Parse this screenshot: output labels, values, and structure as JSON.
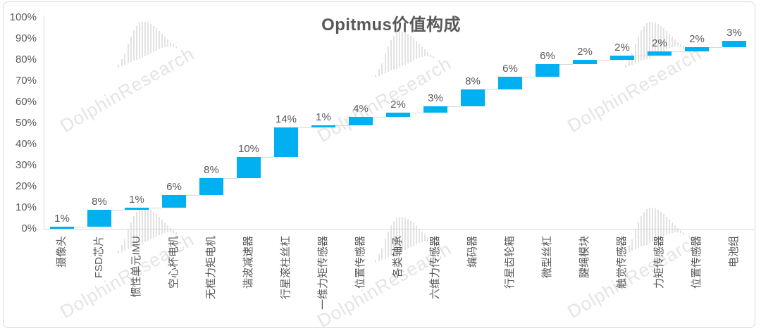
{
  "frame": {
    "background": "#ffffff",
    "border_color": "#d9d9d9"
  },
  "watermark": {
    "text": "DolphinResearch",
    "text_color": "#e4e4e4",
    "logo_color": "#e2e2e2",
    "logo": "dolphin-bars-icon"
  },
  "chart_data": {
    "type": "bar",
    "subtype": "waterfall",
    "title": "Opitmus价值构成",
    "categories": [
      "摄像头",
      "FSD芯片",
      "惯性单元IMU",
      "空心杯电机",
      "无框力矩电机",
      "谐波减速器",
      "行星滚柱丝杠",
      "一维力矩传感器",
      "位置传感器",
      "各类轴承",
      "六维力传感器",
      "编码器",
      "行星齿轮箱",
      "微型丝杠",
      "腱绳模块",
      "触觉传感器",
      "力矩传感器",
      "位置传感器",
      "电池组"
    ],
    "values": [
      1,
      8,
      1,
      6,
      8,
      10,
      14,
      1,
      4,
      2,
      3,
      8,
      6,
      6,
      2,
      2,
      2,
      2,
      3
    ],
    "data_labels": [
      "1%",
      "8%",
      "1%",
      "6%",
      "8%",
      "10%",
      "14%",
      "1%",
      "4%",
      "2%",
      "3%",
      "8%",
      "6%",
      "6%",
      "2%",
      "2%",
      "2%",
      "2%",
      "3%"
    ],
    "xlabel": "",
    "ylabel": "",
    "y_axis": {
      "ticks": [
        "100%",
        "90%",
        "80%",
        "70%",
        "60%",
        "50%",
        "40%",
        "30%",
        "20%",
        "10%",
        "0%"
      ],
      "min": 0,
      "max": 100
    },
    "grid": false,
    "legend": false,
    "colors": {
      "bar": "#00B0F0",
      "label_text": "#595959",
      "axis_line": "#d9d9d9",
      "connector": "#d9d9d9"
    }
  }
}
